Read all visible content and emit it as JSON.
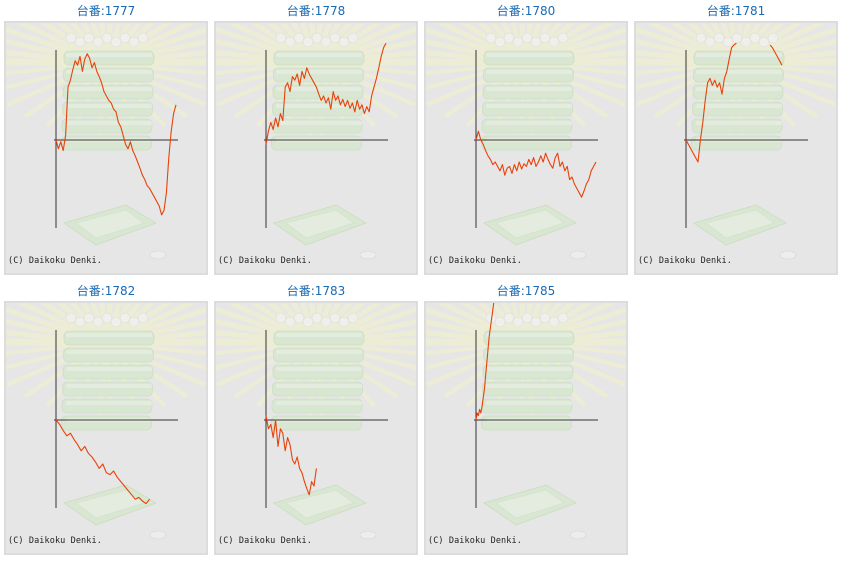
{
  "copyright": "(C) Daikoku Denki.",
  "colors": {
    "title": "#1a6bb5",
    "line": "#e8420a",
    "axis": "#333333",
    "panel_bg": "#e6e6e6"
  },
  "units": [
    {
      "label": "台番:1777",
      "chart_data": {
        "type": "line",
        "x": [
          0,
          0.02,
          0.04,
          0.06,
          0.08,
          0.1,
          0.12,
          0.14,
          0.16,
          0.18,
          0.2,
          0.22,
          0.24,
          0.26,
          0.28,
          0.3,
          0.32,
          0.34,
          0.36,
          0.38,
          0.4,
          0.42,
          0.44,
          0.46,
          0.48,
          0.5,
          0.52,
          0.54,
          0.56,
          0.58,
          0.6,
          0.62,
          0.64,
          0.66,
          0.68,
          0.7,
          0.72,
          0.74,
          0.76,
          0.78,
          0.8,
          0.82,
          0.84,
          0.86,
          0.88,
          0.9,
          0.92,
          0.94,
          0.96,
          0.98,
          1.0
        ],
        "y": [
          0,
          -0.1,
          -0.02,
          -0.12,
          0.05,
          0.6,
          0.68,
          0.8,
          0.9,
          0.85,
          0.95,
          0.78,
          0.92,
          0.98,
          0.93,
          0.82,
          0.88,
          0.78,
          0.72,
          0.65,
          0.55,
          0.5,
          0.45,
          0.42,
          0.35,
          0.32,
          0.2,
          0.15,
          0.05,
          -0.05,
          -0.1,
          -0.02,
          -0.12,
          -0.18,
          -0.25,
          -0.32,
          -0.4,
          -0.45,
          -0.52,
          -0.55,
          -0.6,
          -0.65,
          -0.7,
          -0.75,
          -0.85,
          -0.8,
          -0.6,
          -0.2,
          0.1,
          0.3,
          0.4
        ]
      }
    },
    {
      "label": "台番:1778",
      "chart_data": {
        "type": "line",
        "x": [
          0,
          0.02,
          0.04,
          0.06,
          0.08,
          0.1,
          0.12,
          0.14,
          0.16,
          0.18,
          0.2,
          0.22,
          0.24,
          0.26,
          0.28,
          0.3,
          0.32,
          0.34,
          0.36,
          0.38,
          0.4,
          0.42,
          0.44,
          0.46,
          0.48,
          0.5,
          0.52,
          0.54,
          0.56,
          0.58,
          0.6,
          0.62,
          0.64,
          0.66,
          0.68,
          0.7,
          0.72,
          0.74,
          0.76,
          0.78,
          0.8,
          0.82,
          0.84,
          0.86,
          0.88,
          0.9,
          0.92,
          0.94,
          0.96,
          0.98,
          1.0
        ],
        "y": [
          -0.05,
          0.1,
          0.2,
          0.12,
          0.25,
          0.15,
          0.3,
          0.22,
          0.6,
          0.65,
          0.55,
          0.72,
          0.68,
          0.75,
          0.62,
          0.78,
          0.7,
          0.82,
          0.75,
          0.7,
          0.65,
          0.6,
          0.52,
          0.45,
          0.5,
          0.42,
          0.48,
          0.35,
          0.55,
          0.45,
          0.5,
          0.4,
          0.46,
          0.38,
          0.45,
          0.36,
          0.42,
          0.32,
          0.45,
          0.35,
          0.4,
          0.3,
          0.38,
          0.32,
          0.5,
          0.6,
          0.7,
          0.82,
          0.95,
          1.05,
          1.1
        ]
      }
    },
    {
      "label": "台番:1780",
      "chart_data": {
        "type": "line",
        "x": [
          0,
          0.02,
          0.04,
          0.06,
          0.08,
          0.1,
          0.12,
          0.14,
          0.16,
          0.18,
          0.2,
          0.22,
          0.24,
          0.26,
          0.28,
          0.3,
          0.32,
          0.34,
          0.36,
          0.38,
          0.4,
          0.42,
          0.44,
          0.46,
          0.48,
          0.5,
          0.52,
          0.54,
          0.56,
          0.58,
          0.6,
          0.62,
          0.64,
          0.66,
          0.68,
          0.7,
          0.72,
          0.74,
          0.76,
          0.78,
          0.8,
          0.82,
          0.84,
          0.86,
          0.88,
          0.9,
          0.92,
          0.94,
          0.96,
          0.98,
          1.0
        ],
        "y": [
          0,
          0.1,
          0,
          -0.05,
          -0.12,
          -0.18,
          -0.22,
          -0.28,
          -0.25,
          -0.3,
          -0.35,
          -0.28,
          -0.4,
          -0.32,
          -0.3,
          -0.38,
          -0.28,
          -0.35,
          -0.25,
          -0.33,
          -0.27,
          -0.3,
          -0.22,
          -0.28,
          -0.2,
          -0.3,
          -0.25,
          -0.18,
          -0.25,
          -0.15,
          -0.22,
          -0.28,
          -0.32,
          -0.2,
          -0.15,
          -0.3,
          -0.25,
          -0.35,
          -0.3,
          -0.45,
          -0.42,
          -0.5,
          -0.55,
          -0.6,
          -0.65,
          -0.58,
          -0.5,
          -0.45,
          -0.35,
          -0.3,
          -0.25
        ]
      }
    },
    {
      "label": "台番:1781",
      "chart_data": {
        "type": "line",
        "x": [
          0,
          0.02,
          0.04,
          0.06,
          0.08,
          0.1,
          0.12,
          0.14,
          0.16,
          0.18,
          0.2,
          0.22,
          0.24,
          0.26,
          0.28,
          0.3,
          0.32,
          0.34,
          0.36,
          0.38,
          0.4,
          0.42,
          0.44,
          0.46,
          0.48,
          0.5,
          0.52,
          0.54,
          0.56,
          0.58,
          0.6,
          0.62,
          0.64,
          0.66,
          0.68,
          0.7,
          0.72,
          0.74,
          0.76,
          0.78,
          0.8
        ],
        "y": [
          0,
          -0.05,
          -0.1,
          -0.15,
          -0.2,
          -0.25,
          0,
          0.2,
          0.45,
          0.65,
          0.7,
          0.62,
          0.68,
          0.6,
          0.65,
          0.52,
          0.7,
          0.78,
          0.92,
          1.05,
          1.08,
          1.1,
          null,
          null,
          null,
          null,
          null,
          null,
          null,
          null,
          null,
          null,
          null,
          null,
          null,
          1.08,
          1.05,
          1.0,
          0.95,
          0.9,
          0.85
        ]
      }
    },
    {
      "label": "台番:1782",
      "chart_data": {
        "type": "line",
        "x": [
          0,
          0.03,
          0.06,
          0.09,
          0.12,
          0.15,
          0.18,
          0.21,
          0.24,
          0.27,
          0.3,
          0.33,
          0.36,
          0.39,
          0.42,
          0.45,
          0.48,
          0.51,
          0.54,
          0.57,
          0.6,
          0.63,
          0.66,
          0.69,
          0.72,
          0.75,
          0.78
        ],
        "y": [
          0,
          -0.05,
          -0.12,
          -0.18,
          -0.15,
          -0.22,
          -0.28,
          -0.35,
          -0.3,
          -0.38,
          -0.42,
          -0.48,
          -0.55,
          -0.5,
          -0.6,
          -0.62,
          -0.58,
          -0.65,
          -0.7,
          -0.75,
          -0.8,
          -0.85,
          -0.9,
          -0.88,
          -0.92,
          -0.95,
          -0.9
        ]
      }
    },
    {
      "label": "台番:1783",
      "chart_data": {
        "type": "line",
        "x": [
          0,
          0.02,
          0.04,
          0.06,
          0.08,
          0.1,
          0.12,
          0.14,
          0.16,
          0.18,
          0.2,
          0.22,
          0.24,
          0.26,
          0.28,
          0.3,
          0.32,
          0.34,
          0.36,
          0.38,
          0.4,
          0.42
        ],
        "y": [
          0.05,
          -0.1,
          -0.05,
          -0.2,
          0,
          -0.3,
          -0.1,
          -0.15,
          -0.35,
          -0.2,
          -0.28,
          -0.45,
          -0.5,
          -0.42,
          -0.55,
          -0.6,
          -0.7,
          -0.78,
          -0.85,
          -0.7,
          -0.75,
          -0.55
        ]
      }
    },
    {
      "label": "台番:1785",
      "chart_data": {
        "type": "line",
        "x": [
          0,
          0.01,
          0.02,
          0.03,
          0.04,
          0.05,
          0.06,
          0.07,
          0.08,
          0.09,
          0.1,
          0.11,
          0.12,
          0.13,
          0.14,
          0.15,
          0.16,
          0.17,
          0.18
        ],
        "y": [
          0,
          0.08,
          0.05,
          0.12,
          0.08,
          0.15,
          0.25,
          0.35,
          0.5,
          0.65,
          0.8,
          0.95,
          1.05,
          1.15,
          1.25,
          1.35,
          1.45,
          1.55,
          1.65
        ]
      }
    }
  ]
}
